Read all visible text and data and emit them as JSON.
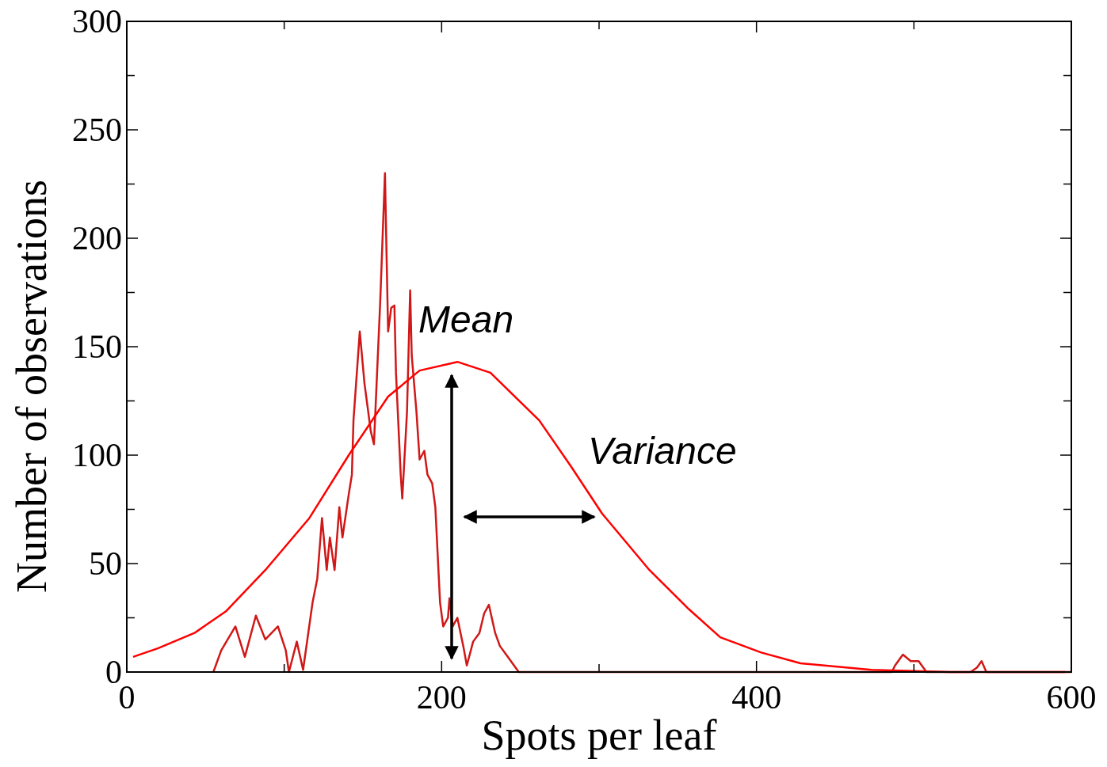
{
  "chart_data": {
    "type": "line",
    "xlabel": "Spots per leaf",
    "ylabel": "Number of observations",
    "xlim": [
      0,
      600
    ],
    "ylim": [
      0,
      300
    ],
    "xticks": [
      0,
      {
        "value": 100,
        "label": null
      },
      200,
      {
        "value": 300,
        "label": null
      },
      400,
      {
        "value": 500,
        "label": null
      },
      600
    ],
    "yticks": [
      0,
      {
        "value": 25,
        "label": null
      },
      50,
      {
        "value": 75,
        "label": null
      },
      100,
      {
        "value": 125,
        "label": null
      },
      150,
      {
        "value": 175,
        "label": null
      },
      200,
      {
        "value": 225,
        "label": null
      },
      250,
      {
        "value": 275,
        "label": null
      },
      300
    ],
    "grid": false,
    "marker": "none",
    "line_style": "solid",
    "series": [
      {
        "color": "#d01818",
        "x": [
          55,
          60,
          69,
          75,
          82,
          88,
          96,
          101,
          103,
          108,
          112,
          118,
          121,
          124,
          127,
          129,
          132,
          135,
          137,
          141,
          143,
          144,
          148,
          151,
          155,
          157,
          159,
          161,
          164,
          165,
          166,
          168,
          170,
          171,
          174,
          175,
          178,
          180,
          181,
          184,
          186,
          189,
          191,
          194,
          196,
          199,
          201,
          204,
          205,
          207,
          210,
          214,
          216,
          220,
          224,
          227,
          230,
          234,
          237,
          241,
          244,
          249,
          486,
          488,
          493,
          498,
          503,
          508,
          536,
          540,
          543,
          546,
          600
        ],
        "values": [
          0,
          10,
          21,
          7,
          26,
          15,
          21,
          10,
          0,
          14,
          1,
          32,
          43,
          71,
          47,
          62,
          47,
          76,
          62,
          82,
          91,
          116,
          157,
          133,
          111,
          105,
          138,
          171,
          230,
          193,
          157,
          168,
          169,
          138,
          91,
          80,
          120,
          176,
          146,
          120,
          98,
          102,
          91,
          87,
          76,
          32,
          21,
          25,
          34,
          21,
          25,
          11,
          3,
          14,
          18,
          27,
          31,
          18,
          12,
          8,
          5,
          0,
          0,
          3,
          8,
          5,
          5,
          0,
          0,
          2,
          5,
          0,
          0
        ]
      },
      {
        "color": "#ff0000",
        "x": [
          4,
          20,
          43,
          63,
          88,
          116,
          141,
          166,
          186,
          210,
          231,
          262,
          282,
          302,
          332,
          357,
          377,
          403,
          428,
          473,
          523,
          596
        ],
        "values": [
          7,
          11,
          18,
          28,
          47,
          71,
          100,
          127,
          139,
          143,
          138,
          116,
          95,
          73,
          47,
          29,
          16,
          9,
          4,
          1,
          0,
          0
        ]
      }
    ],
    "annotations": [
      "Mean",
      "Variance"
    ]
  }
}
